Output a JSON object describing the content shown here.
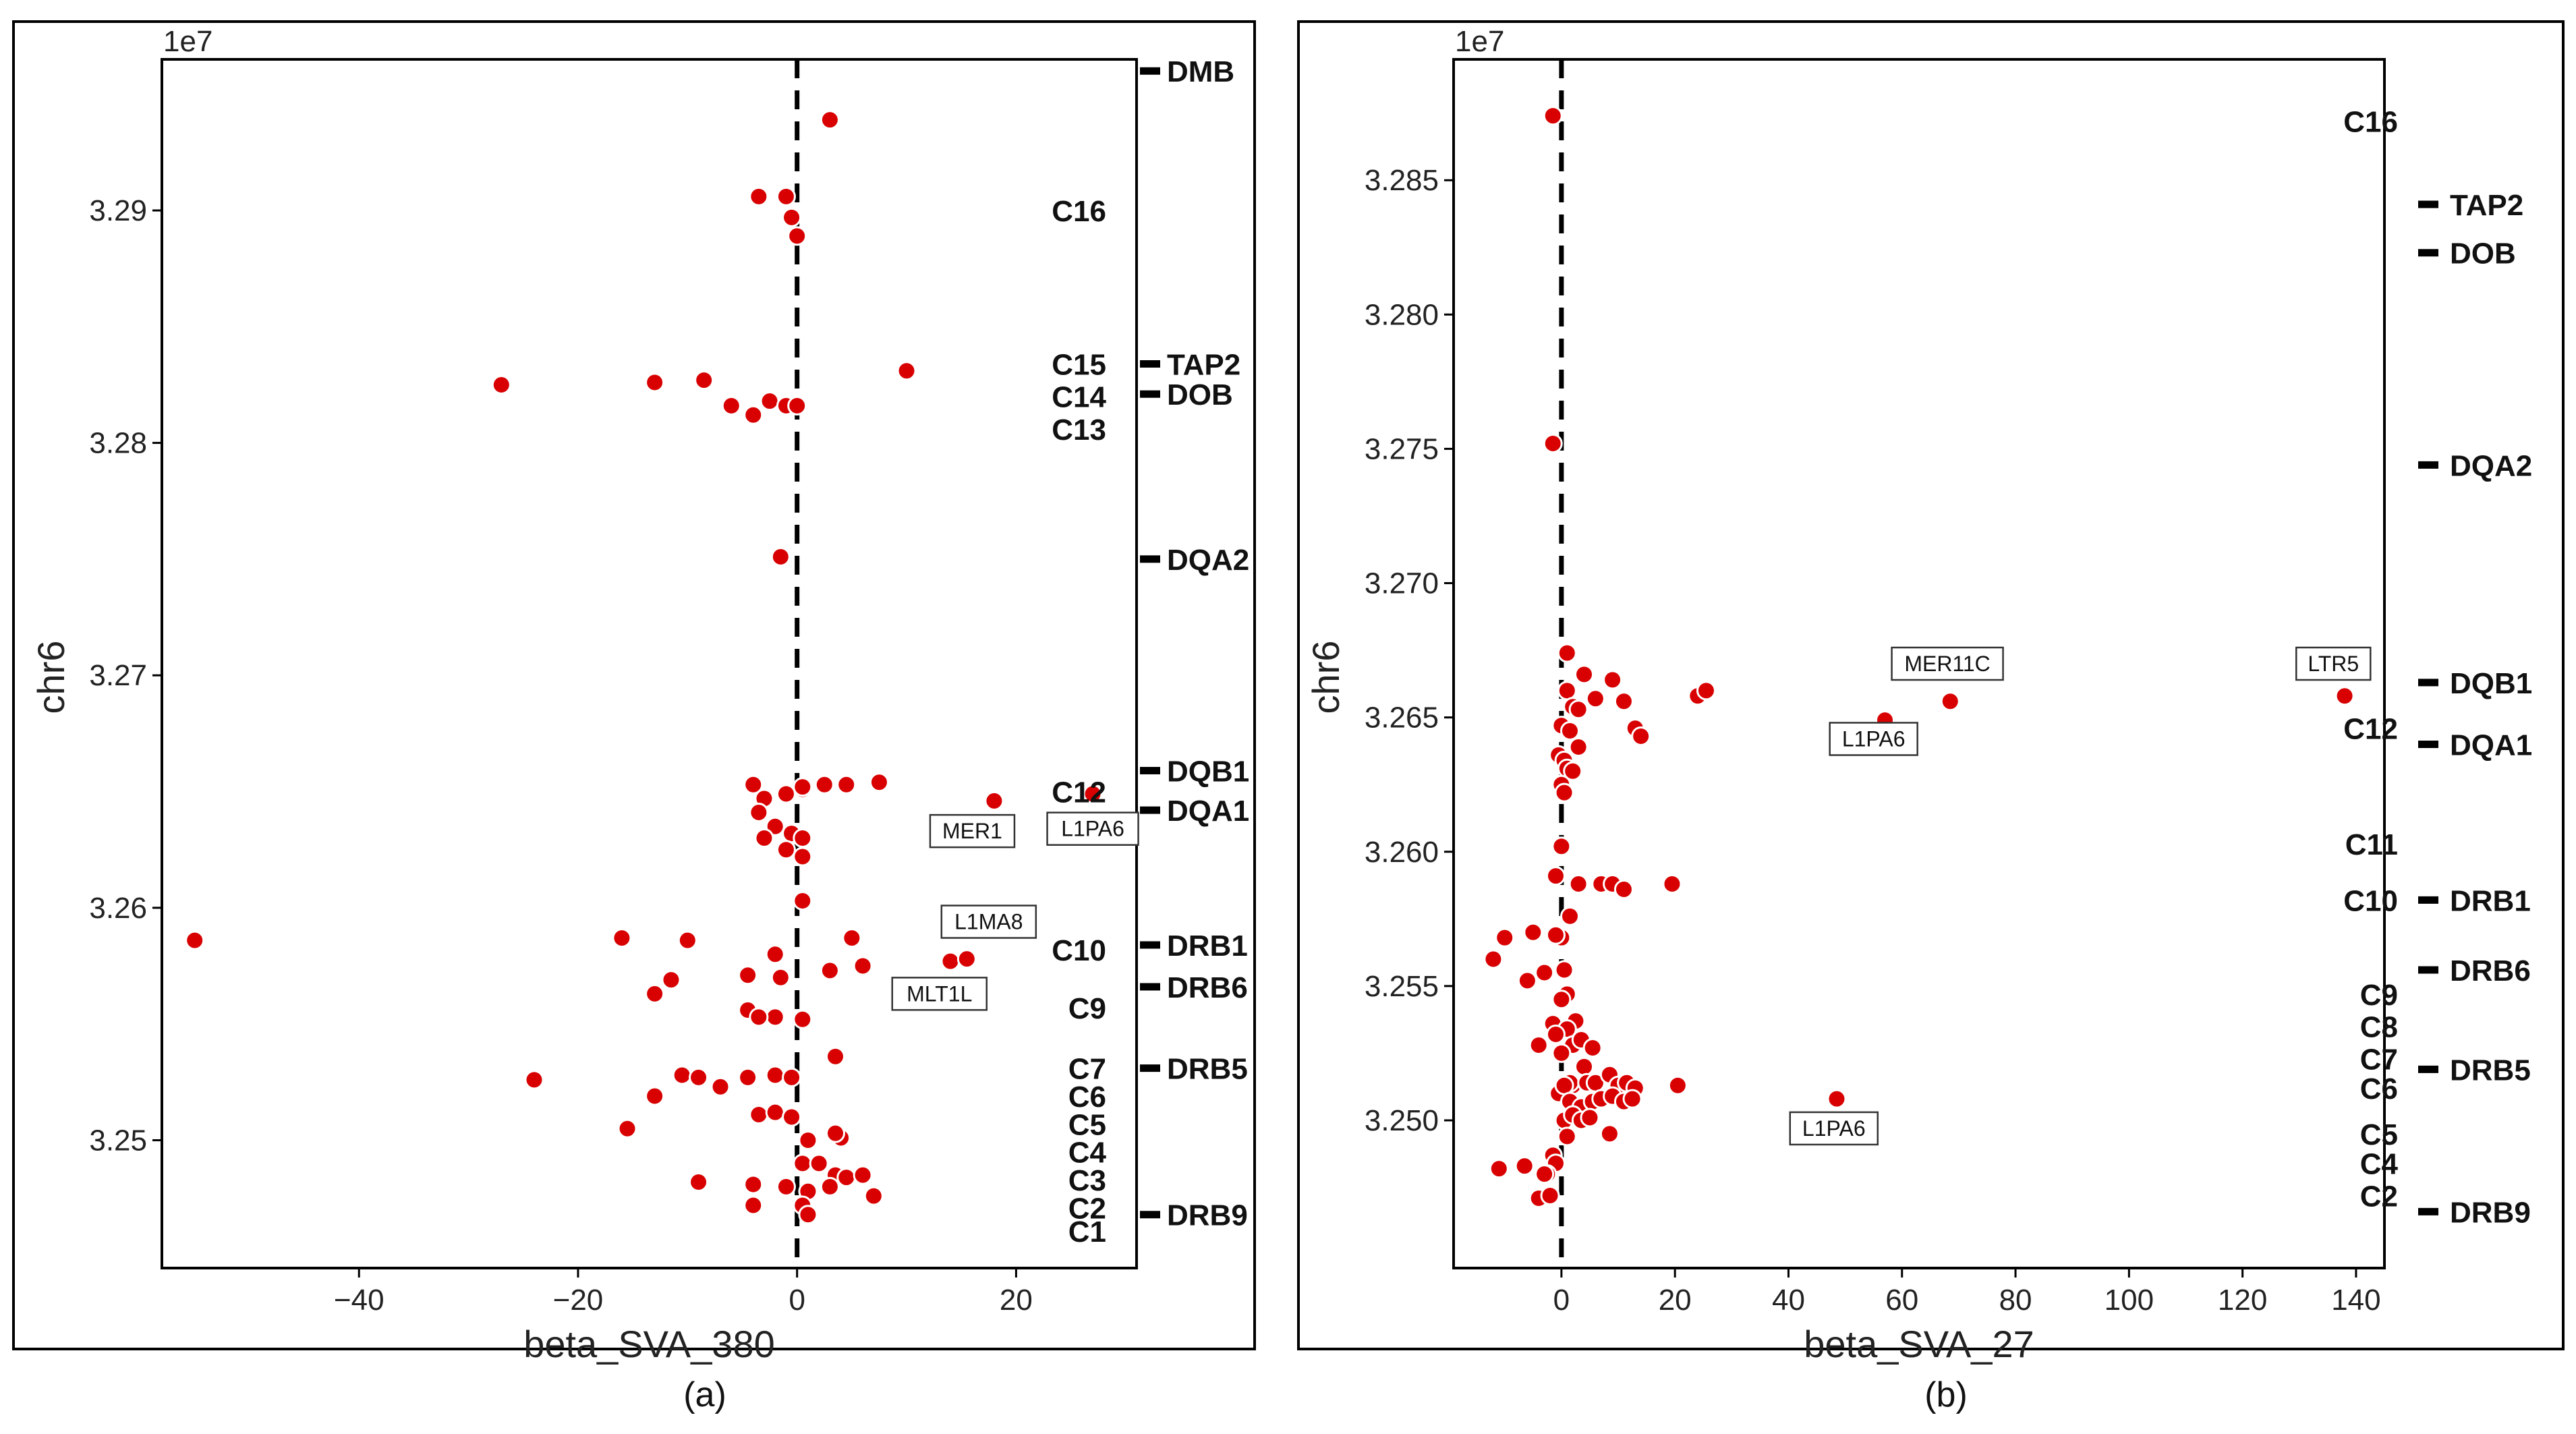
{
  "chart_data": [
    {
      "type": "scatter",
      "caption": "(a)",
      "xlabel": "beta_SVA_380",
      "ylabel": "chr6",
      "offset_label": "1e7",
      "xlim": [
        -58,
        31
      ],
      "ylim": [
        3.2445,
        3.2965
      ],
      "xticks": [
        -40,
        -20,
        0,
        20
      ],
      "xtick_labels": [
        "−40",
        "−20",
        "0",
        "20"
      ],
      "yticks": [
        3.25,
        3.26,
        3.27,
        3.28,
        3.29
      ],
      "ytick_labels": [
        "3.25",
        "3.26",
        "3.27",
        "3.28",
        "3.29"
      ],
      "x": [
        3,
        -3.5,
        -1,
        -0.5,
        0,
        -27,
        -13,
        -8.5,
        -6,
        -4,
        -2.5,
        -1,
        0,
        10,
        -1.5,
        0.5,
        -4,
        -3,
        -1,
        0.5,
        2.5,
        4.5,
        7.5,
        -3.5,
        -2,
        -0.5,
        0.5,
        -3,
        -1,
        0.5,
        18,
        27,
        0.5,
        -55,
        -16,
        -10,
        -2,
        5,
        14,
        15.5,
        -11.5,
        -4.5,
        -1.5,
        3,
        6,
        -13,
        -4.5,
        -2,
        -3.5,
        0.5,
        3.5,
        -24,
        -13,
        -10.5,
        -9,
        -7,
        -4.5,
        -2,
        -0.5,
        -15.5,
        -3.5,
        -2,
        -0.5,
        1,
        4,
        3.5,
        0.5,
        2,
        3.5,
        4.5,
        6,
        -9,
        -4,
        -1,
        1,
        3,
        7,
        -4,
        0.5,
        1
      ],
      "y": [
        3.2939,
        3.2906,
        3.2906,
        3.2897,
        3.2889,
        3.2825,
        3.2826,
        3.2827,
        3.2816,
        3.2812,
        3.2818,
        3.2816,
        3.2816,
        3.2831,
        3.2751,
        3.2651,
        3.2653,
        3.2647,
        3.2649,
        3.2652,
        3.2653,
        3.2653,
        3.2654,
        3.2641,
        3.2635,
        3.2632,
        3.263,
        3.263,
        3.2625,
        3.2622,
        3.2646,
        3.2649,
        3.2603,
        3.2586,
        3.2587,
        3.2586,
        3.258,
        3.2587,
        3.2577,
        3.2578,
        3.2569,
        3.2571,
        3.257,
        3.2573,
        3.2575,
        3.2563,
        3.2556,
        3.2553,
        3.2553,
        3.2552,
        3.2536,
        3.2526,
        3.2519,
        3.2528,
        3.2527,
        3.2523,
        3.2527,
        3.2528,
        3.2527,
        3.2505,
        3.2511,
        3.2512,
        3.251,
        3.25,
        3.2501,
        3.2503,
        3.249,
        3.249,
        3.2485,
        3.2484,
        3.2485,
        3.2482,
        3.2481,
        3.248,
        3.2478,
        3.248,
        3.2476,
        3.2472,
        3.2472,
        3.2468
      ],
      "gene_markers": [
        {
          "name": "DMB",
          "y": 3.296
        },
        {
          "name": "TAP2",
          "y": 3.2834
        },
        {
          "name": "DOB",
          "y": 3.2821
        },
        {
          "name": "DQA2",
          "y": 3.275
        },
        {
          "name": "DQB1",
          "y": 3.2659
        },
        {
          "name": "DQA1",
          "y": 3.2642
        },
        {
          "name": "DRB1",
          "y": 3.2584
        },
        {
          "name": "DRB6",
          "y": 3.2566
        },
        {
          "name": "DRB5",
          "y": 3.2531
        },
        {
          "name": "DRB9",
          "y": 3.2468
        }
      ],
      "cluster_labels": [
        {
          "name": "C16",
          "y": 3.29
        },
        {
          "name": "C15",
          "y": 3.2834
        },
        {
          "name": "C14",
          "y": 3.282
        },
        {
          "name": "C13",
          "y": 3.2806
        },
        {
          "name": "C12",
          "y": 3.265
        },
        {
          "name": "C10",
          "y": 3.2582
        },
        {
          "name": "C9",
          "y": 3.2557
        },
        {
          "name": "C7",
          "y": 3.2531
        },
        {
          "name": "C6",
          "y": 3.2519
        },
        {
          "name": "C5",
          "y": 3.2507
        },
        {
          "name": "C4",
          "y": 3.2495
        },
        {
          "name": "C3",
          "y": 3.2483
        },
        {
          "name": "C2",
          "y": 3.2471
        },
        {
          "name": "C1",
          "y": 3.2461
        }
      ],
      "annotations": [
        {
          "text": "MER1",
          "x": 16,
          "y": 3.2633
        },
        {
          "text": "L1PA6",
          "x": 27,
          "y": 3.2634
        },
        {
          "text": "L1MA8",
          "x": 17.5,
          "y": 3.2594
        },
        {
          "text": "MLT1L",
          "x": 13,
          "y": 3.2563
        }
      ]
    },
    {
      "type": "scatter",
      "caption": "(b)",
      "xlabel": "beta_SVA_27",
      "ylabel": "chr6",
      "offset_label": "1e7",
      "xlim": [
        -19,
        145
      ],
      "ylim": [
        3.2445,
        3.2895
      ],
      "xticks": [
        0,
        20,
        40,
        60,
        80,
        100,
        120,
        140
      ],
      "xtick_labels": [
        "0",
        "20",
        "40",
        "60",
        "80",
        "100",
        "120",
        "140"
      ],
      "yticks": [
        3.25,
        3.255,
        3.26,
        3.265,
        3.27,
        3.275,
        3.28,
        3.285
      ],
      "ytick_labels": [
        "3.250",
        "3.255",
        "3.260",
        "3.265",
        "3.270",
        "3.275",
        "3.280",
        "3.285"
      ],
      "x": [
        -1.5,
        -1.5,
        1,
        1,
        2,
        3,
        4,
        6,
        9,
        11,
        13,
        14,
        24,
        25.5,
        57,
        68.5,
        138,
        0,
        1.5,
        3,
        -0.5,
        0.5,
        1,
        2,
        0,
        0.5,
        7,
        9,
        11,
        19.5,
        3,
        0,
        -1,
        1.5,
        0,
        -10,
        -12,
        -5,
        -1,
        -6,
        -3,
        0.5,
        1,
        0,
        2.5,
        -1.5,
        1,
        2,
        -1,
        -4,
        0,
        3.5,
        5.5,
        4,
        -0.5,
        2,
        1.5,
        0.5,
        4.5,
        6,
        8.5,
        10,
        11.5,
        13,
        20.5,
        1.5,
        3.5,
        5.5,
        7,
        9,
        11,
        12.5,
        0.5,
        2,
        3.5,
        5,
        8.5,
        1,
        48.5,
        -1.5,
        -1,
        -2.5,
        -11,
        -6.5,
        -3,
        -4,
        -2
      ],
      "y": [
        3.2874,
        3.2752,
        3.2674,
        3.266,
        3.2654,
        3.2653,
        3.2666,
        3.2657,
        3.2664,
        3.2656,
        3.2646,
        3.2643,
        3.2658,
        3.266,
        3.2649,
        3.2656,
        3.2658,
        3.2647,
        3.2645,
        3.2639,
        3.2636,
        3.2634,
        3.2631,
        3.263,
        3.2625,
        3.2622,
        3.2588,
        3.2588,
        3.2586,
        3.2588,
        3.2588,
        3.2602,
        3.2591,
        3.2576,
        3.2568,
        3.2568,
        3.256,
        3.257,
        3.2569,
        3.2552,
        3.2555,
        3.2556,
        3.2547,
        3.2545,
        3.2537,
        3.2536,
        3.2534,
        3.2528,
        3.2532,
        3.2528,
        3.2525,
        3.253,
        3.2527,
        3.252,
        3.251,
        3.2513,
        3.2514,
        3.2513,
        3.2514,
        3.2514,
        3.2517,
        3.2513,
        3.2514,
        3.2512,
        3.2513,
        3.2507,
        3.2505,
        3.2507,
        3.2508,
        3.2509,
        3.2507,
        3.2508,
        3.25,
        3.2502,
        3.25,
        3.2501,
        3.2495,
        3.2494,
        3.2508,
        3.2487,
        3.2484,
        3.248,
        3.2482,
        3.2483,
        3.248,
        3.2471,
        3.2472
      ],
      "gene_markers": [
        {
          "name": "TAP2",
          "y": 3.2841
        },
        {
          "name": "DOB",
          "y": 3.2823
        },
        {
          "name": "DQA2",
          "y": 3.2744
        },
        {
          "name": "DQB1",
          "y": 3.2663
        },
        {
          "name": "DQA1",
          "y": 3.264
        },
        {
          "name": "DRB1",
          "y": 3.2582
        },
        {
          "name": "DRB6",
          "y": 3.2556
        },
        {
          "name": "DRB5",
          "y": 3.2519
        },
        {
          "name": "DRB9",
          "y": 3.2466
        }
      ],
      "cluster_labels": [
        {
          "name": "C16",
          "y": 3.2872
        },
        {
          "name": "C12",
          "y": 3.2646
        },
        {
          "name": "C11",
          "y": 3.2603
        },
        {
          "name": "C10",
          "y": 3.2582
        },
        {
          "name": "C9",
          "y": 3.2547
        },
        {
          "name": "C8",
          "y": 3.2535
        },
        {
          "name": "C7",
          "y": 3.2523
        },
        {
          "name": "C6",
          "y": 3.2512
        },
        {
          "name": "C5",
          "y": 3.2495
        },
        {
          "name": "C4",
          "y": 3.2484
        },
        {
          "name": "C2",
          "y": 3.2472
        }
      ],
      "annotations": [
        {
          "text": "MER11C",
          "x": 68,
          "y": 3.267
        },
        {
          "text": "L1PA6",
          "x": 55,
          "y": 3.2642
        },
        {
          "text": "LTR5",
          "x": 136,
          "y": 3.267
        },
        {
          "text": "L1PA6",
          "x": 48,
          "y": 3.2497
        }
      ]
    }
  ]
}
